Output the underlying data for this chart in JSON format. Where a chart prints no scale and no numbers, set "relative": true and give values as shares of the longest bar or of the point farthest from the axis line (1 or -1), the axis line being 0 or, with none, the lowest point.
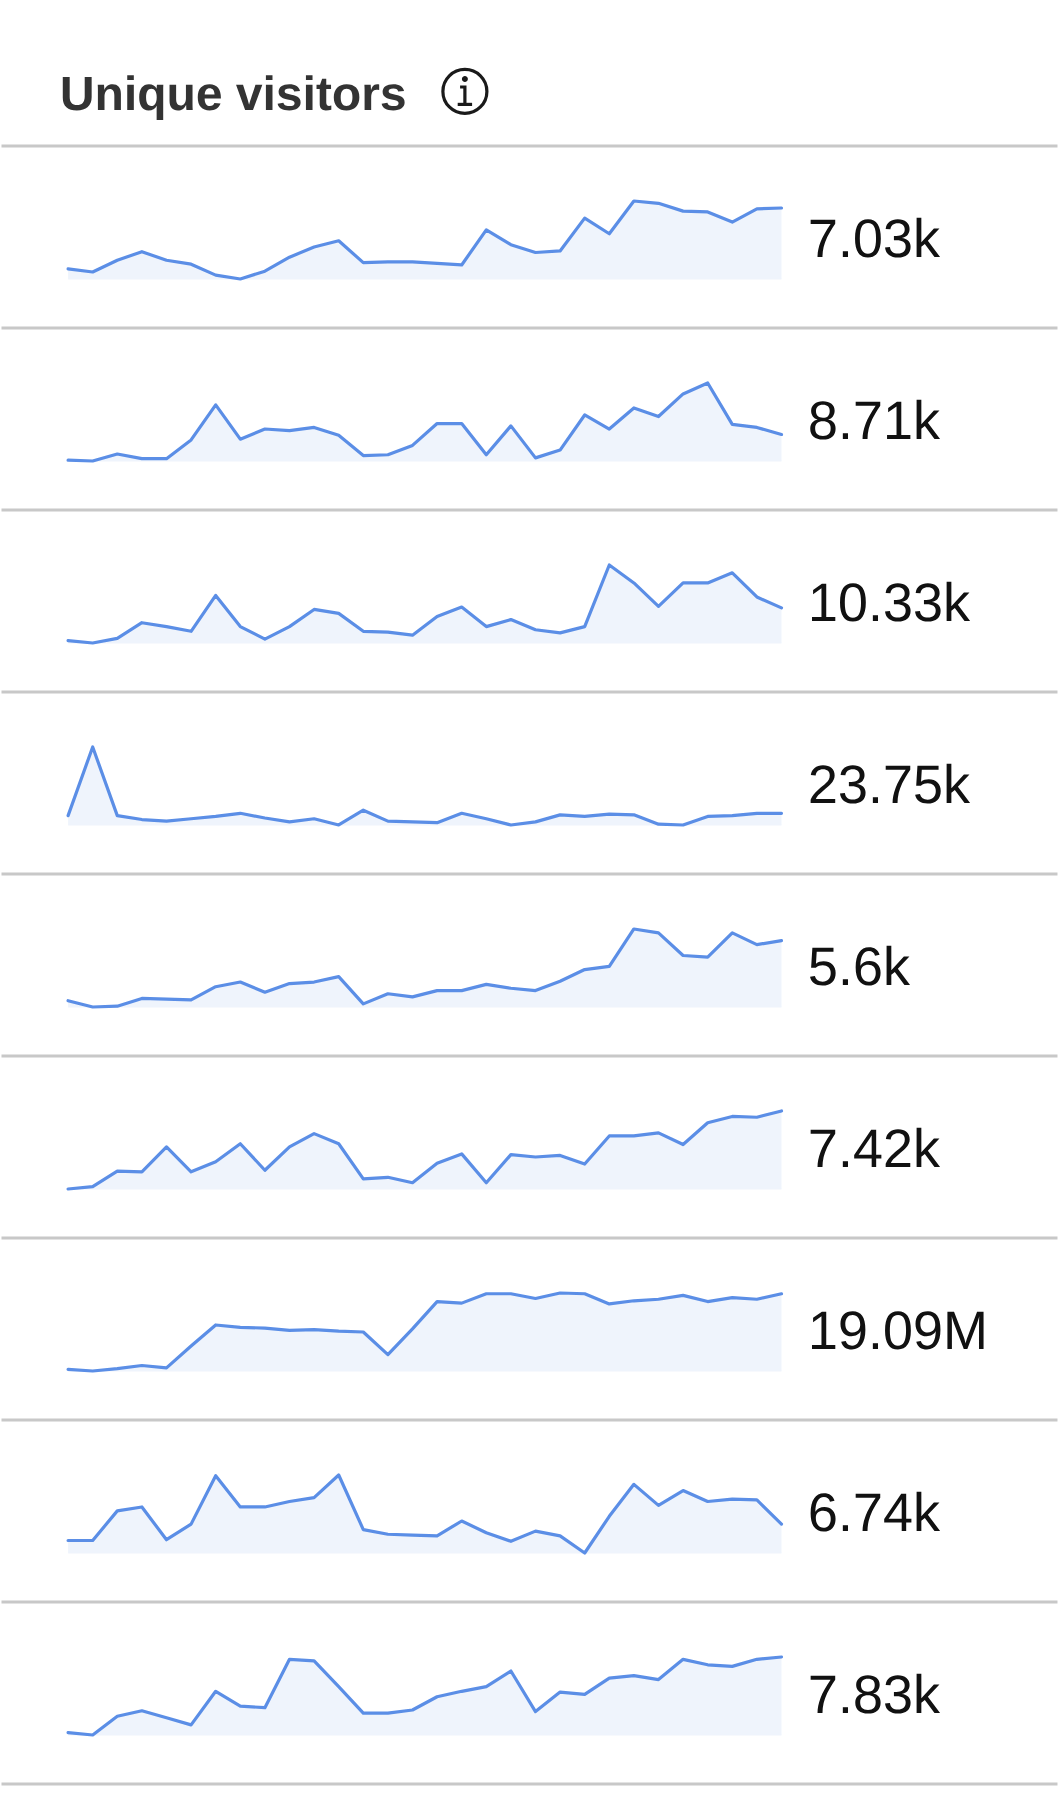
{
  "chart_data": [
    {
      "type": "area",
      "title": "Unique visitors",
      "relative": true,
      "color": "#5b8ee6",
      "categories": [
        null,
        null,
        null,
        null,
        null,
        null,
        null,
        null,
        null,
        null,
        null,
        null,
        null,
        null,
        null,
        null,
        null,
        null,
        null,
        null,
        null,
        null,
        null,
        null,
        null,
        null,
        null,
        null,
        null,
        null
      ],
      "values": [
        0.13,
        0.09,
        0.24,
        0.35,
        0.24,
        0.19,
        0.05,
        0,
        0.1,
        0.28,
        0.41,
        0.49,
        0.21,
        0.22,
        0.22,
        0.2,
        0.18,
        0.63,
        0.44,
        0.34,
        0.36,
        0.78,
        0.58,
        1,
        0.97,
        0.87,
        0.86,
        0.73,
        0.9,
        0.91
      ],
      "annotations": [
        "7.03k"
      ]
    },
    {
      "type": "area",
      "relative": true,
      "color": "#5b8ee6",
      "categories": [
        null,
        null,
        null,
        null,
        null,
        null,
        null,
        null,
        null,
        null,
        null,
        null,
        null,
        null,
        null,
        null,
        null,
        null,
        null,
        null,
        null,
        null,
        null,
        null,
        null,
        null,
        null,
        null,
        null,
        null
      ],
      "values": [
        0.01,
        0,
        0.09,
        0.03,
        0.03,
        0.27,
        0.72,
        0.28,
        0.41,
        0.39,
        0.43,
        0.33,
        0.07,
        0.08,
        0.2,
        0.48,
        0.48,
        0.08,
        0.45,
        0.04,
        0.14,
        0.59,
        0.41,
        0.68,
        0.57,
        0.86,
        1,
        0.47,
        0.43,
        0.34
      ],
      "annotations": [
        "8.71k"
      ]
    },
    {
      "type": "area",
      "relative": true,
      "color": "#5b8ee6",
      "categories": [
        null,
        null,
        null,
        null,
        null,
        null,
        null,
        null,
        null,
        null,
        null,
        null,
        null,
        null,
        null,
        null,
        null,
        null,
        null,
        null,
        null,
        null,
        null,
        null,
        null,
        null,
        null,
        null,
        null,
        null
      ],
      "values": [
        0.03,
        0,
        0.06,
        0.26,
        0.21,
        0.15,
        0.61,
        0.21,
        0.05,
        0.21,
        0.43,
        0.38,
        0.15,
        0.14,
        0.1,
        0.34,
        0.46,
        0.21,
        0.3,
        0.17,
        0.13,
        0.21,
        1,
        0.77,
        0.47,
        0.77,
        0.77,
        0.9,
        0.59,
        0.45
      ],
      "annotations": [
        "10.33k"
      ]
    },
    {
      "type": "area",
      "relative": true,
      "color": "#5b8ee6",
      "categories": [
        null,
        null,
        null,
        null,
        null,
        null,
        null,
        null,
        null,
        null,
        null,
        null,
        null,
        null,
        null,
        null,
        null,
        null,
        null,
        null,
        null,
        null,
        null,
        null,
        null,
        null,
        null,
        null,
        null,
        null
      ],
      "values": [
        0.12,
        1,
        0.12,
        0.07,
        0.05,
        0.08,
        0.11,
        0.15,
        0.09,
        0.04,
        0.08,
        0,
        0.19,
        0.05,
        0.04,
        0.03,
        0.15,
        0.08,
        0,
        0.04,
        0.13,
        0.11,
        0.14,
        0.13,
        0.01,
        0,
        0.11,
        0.12,
        0.15,
        0.15
      ],
      "annotations": [
        "23.75k"
      ]
    },
    {
      "type": "area",
      "relative": true,
      "color": "#5b8ee6",
      "categories": [
        null,
        null,
        null,
        null,
        null,
        null,
        null,
        null,
        null,
        null,
        null,
        null,
        null,
        null,
        null,
        null,
        null,
        null,
        null,
        null,
        null,
        null,
        null,
        null,
        null,
        null,
        null,
        null,
        null,
        null
      ],
      "values": [
        0.08,
        0,
        0.01,
        0.11,
        0.1,
        0.09,
        0.26,
        0.32,
        0.19,
        0.3,
        0.32,
        0.39,
        0.04,
        0.17,
        0.13,
        0.21,
        0.21,
        0.29,
        0.24,
        0.21,
        0.33,
        0.48,
        0.52,
        1,
        0.95,
        0.66,
        0.64,
        0.95,
        0.8,
        0.85
      ],
      "annotations": [
        "5.6k"
      ]
    },
    {
      "type": "area",
      "relative": true,
      "color": "#5b8ee6",
      "categories": [
        null,
        null,
        null,
        null,
        null,
        null,
        null,
        null,
        null,
        null,
        null,
        null,
        null,
        null,
        null,
        null,
        null,
        null,
        null,
        null,
        null,
        null,
        null,
        null,
        null,
        null,
        null,
        null,
        null,
        null
      ],
      "values": [
        0,
        0.03,
        0.23,
        0.22,
        0.54,
        0.22,
        0.35,
        0.58,
        0.24,
        0.54,
        0.71,
        0.58,
        0.13,
        0.15,
        0.08,
        0.33,
        0.45,
        0.08,
        0.44,
        0.41,
        0.43,
        0.32,
        0.68,
        0.68,
        0.72,
        0.57,
        0.85,
        0.93,
        0.92,
        1
      ],
      "annotations": [
        "7.42k"
      ]
    },
    {
      "type": "area",
      "relative": true,
      "color": "#5b8ee6",
      "categories": [
        null,
        null,
        null,
        null,
        null,
        null,
        null,
        null,
        null,
        null,
        null,
        null,
        null,
        null,
        null,
        null,
        null,
        null,
        null,
        null,
        null,
        null,
        null,
        null,
        null,
        null,
        null,
        null,
        null,
        null
      ],
      "values": [
        0.02,
        0,
        0.03,
        0.07,
        0.04,
        0.32,
        0.59,
        0.56,
        0.55,
        0.52,
        0.53,
        0.51,
        0.5,
        0.21,
        0.54,
        0.89,
        0.87,
        0.99,
        0.99,
        0.93,
        1,
        0.99,
        0.86,
        0.9,
        0.92,
        0.97,
        0.89,
        0.94,
        0.92,
        0.99
      ],
      "annotations": [
        "19.09M"
      ]
    },
    {
      "type": "area",
      "relative": true,
      "color": "#5b8ee6",
      "categories": [
        null,
        null,
        null,
        null,
        null,
        null,
        null,
        null,
        null,
        null,
        null,
        null,
        null,
        null,
        null,
        null,
        null,
        null,
        null,
        null,
        null,
        null,
        null,
        null,
        null,
        null,
        null,
        null,
        null,
        null
      ],
      "values": [
        0.16,
        0.16,
        0.54,
        0.59,
        0.17,
        0.37,
        0.99,
        0.59,
        0.59,
        0.66,
        0.71,
        1,
        0.3,
        0.24,
        0.23,
        0.22,
        0.41,
        0.26,
        0.15,
        0.28,
        0.22,
        0,
        0.47,
        0.88,
        0.61,
        0.8,
        0.66,
        0.69,
        0.68,
        0.37
      ],
      "annotations": [
        "6.74k"
      ]
    },
    {
      "type": "area",
      "relative": true,
      "color": "#5b8ee6",
      "categories": [
        null,
        null,
        null,
        null,
        null,
        null,
        null,
        null,
        null,
        null,
        null,
        null,
        null,
        null,
        null,
        null,
        null,
        null,
        null,
        null,
        null,
        null,
        null,
        null,
        null,
        null,
        null,
        null,
        null,
        null
      ],
      "values": [
        0.03,
        0,
        0.24,
        0.31,
        0.22,
        0.13,
        0.56,
        0.37,
        0.35,
        0.97,
        0.95,
        0.62,
        0.28,
        0.28,
        0.32,
        0.49,
        0.56,
        0.62,
        0.82,
        0.3,
        0.55,
        0.52,
        0.73,
        0.76,
        0.71,
        0.97,
        0.9,
        0.88,
        0.97,
        1
      ],
      "annotations": [
        "7.83k"
      ]
    }
  ]
}
